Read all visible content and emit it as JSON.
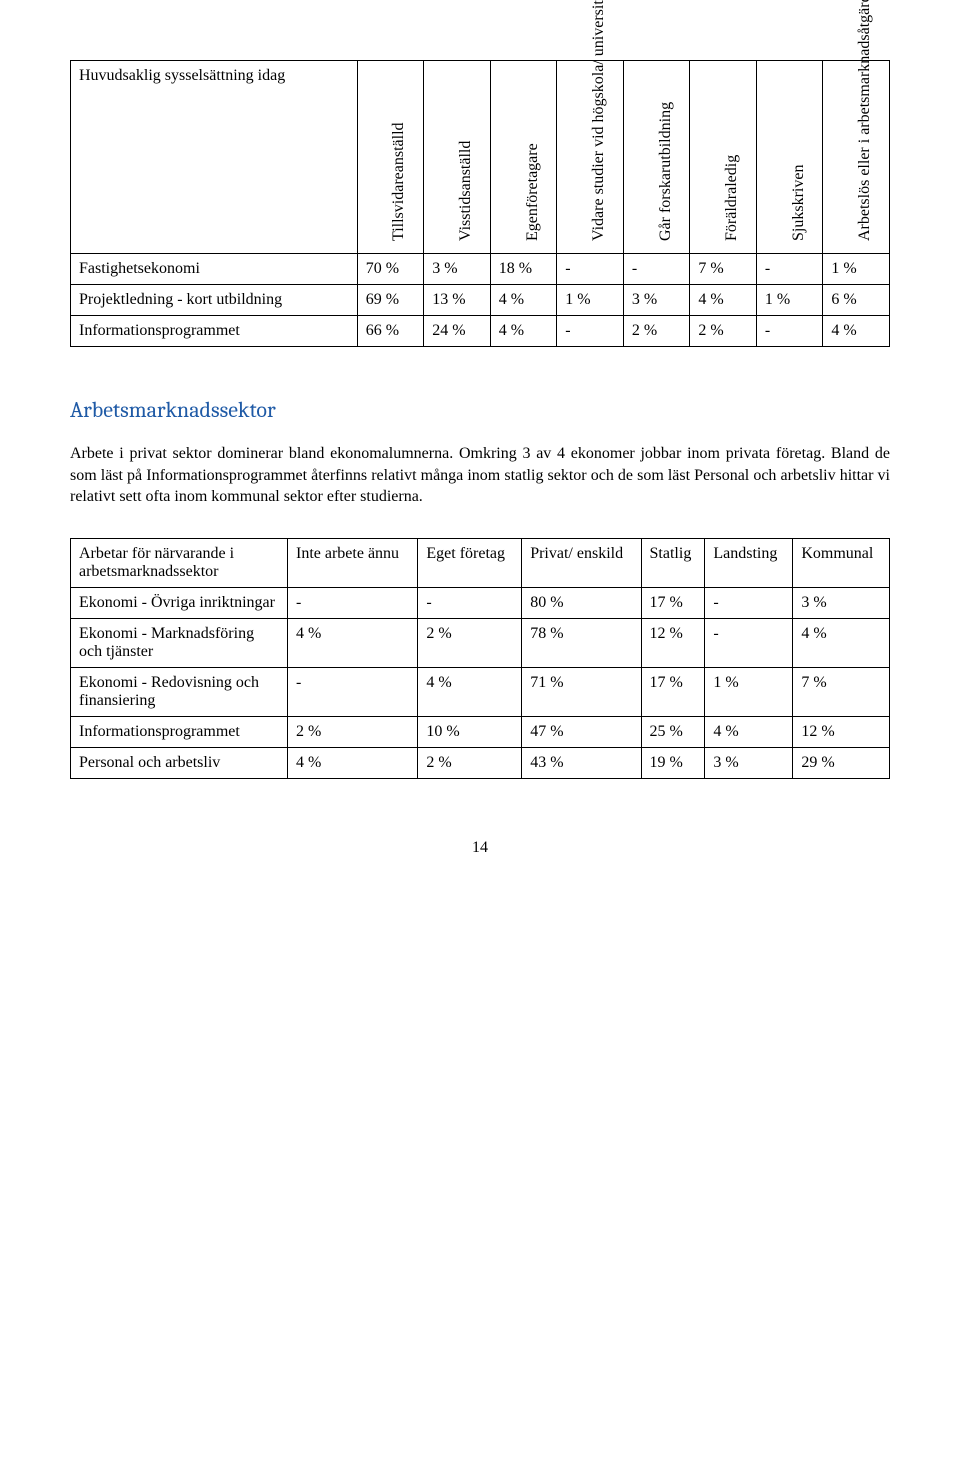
{
  "table1": {
    "corner_label": "Huvudsaklig sysselsättning idag",
    "headers": [
      "Tillsvidareanställd",
      "Visstidsanställd",
      "Egenföretagare",
      "Vidare studier vid högskola/ universitet",
      "Går forskarutbildning",
      "Föräldraledig",
      "Sjukskriven",
      "Arbetslös eller i arbetsmarknadsåtgärd"
    ],
    "rows": [
      {
        "label": "Fastighetsekonomi",
        "cells": [
          "70 %",
          "3 %",
          "18 %",
          "-",
          "-",
          "7 %",
          "-",
          "1 %"
        ]
      },
      {
        "label": "Projektledning - kort utbildning",
        "cells": [
          "69 %",
          "13 %",
          "4 %",
          "1 %",
          "3 %",
          "4 %",
          "1 %",
          "6 %"
        ]
      },
      {
        "label": "Informationsprogrammet",
        "cells": [
          "66 %",
          "24 %",
          "4 %",
          "-",
          "2 %",
          "2 %",
          "-",
          "4 %"
        ]
      }
    ]
  },
  "section_title": "Arbetsmarknadssektor",
  "body_text": "Arbete i privat sektor dominerar bland ekonomalumnerna. Omkring 3 av 4 ekonomer jobbar inom privata företag. Bland de som läst på Informationsprogrammet återfinns relativt många inom statlig sektor och de som läst Personal och arbetsliv hittar vi relativt sett ofta inom kommunal sektor efter studierna.",
  "table2": {
    "corner_label": "Arbetar för närvarande i arbetsmarknadssektor",
    "headers": [
      "Inte arbete ännu",
      "Eget företag",
      "Privat/ enskild",
      "Statlig",
      "Landsting",
      "Kommunal"
    ],
    "rows": [
      {
        "label": "Ekonomi - Övriga inriktningar",
        "cells": [
          "-",
          "-",
          "80 %",
          "17 %",
          "-",
          "3 %"
        ]
      },
      {
        "label": "Ekonomi - Marknadsföring och tjänster",
        "cells": [
          "4 %",
          "2 %",
          "78 %",
          "12 %",
          "-",
          "4 %"
        ]
      },
      {
        "label": "Ekonomi - Redovisning och finansiering",
        "cells": [
          "-",
          "4 %",
          "71 %",
          "17 %",
          "1 %",
          "7 %"
        ]
      },
      {
        "label": "Informationsprogrammet",
        "cells": [
          "2 %",
          "10 %",
          "47 %",
          "25 %",
          "4 %",
          "12 %"
        ]
      },
      {
        "label": "Personal och arbetsliv",
        "cells": [
          "4 %",
          "2 %",
          "43 %",
          "19 %",
          "3 %",
          "29 %"
        ]
      }
    ]
  },
  "page_number": "14"
}
